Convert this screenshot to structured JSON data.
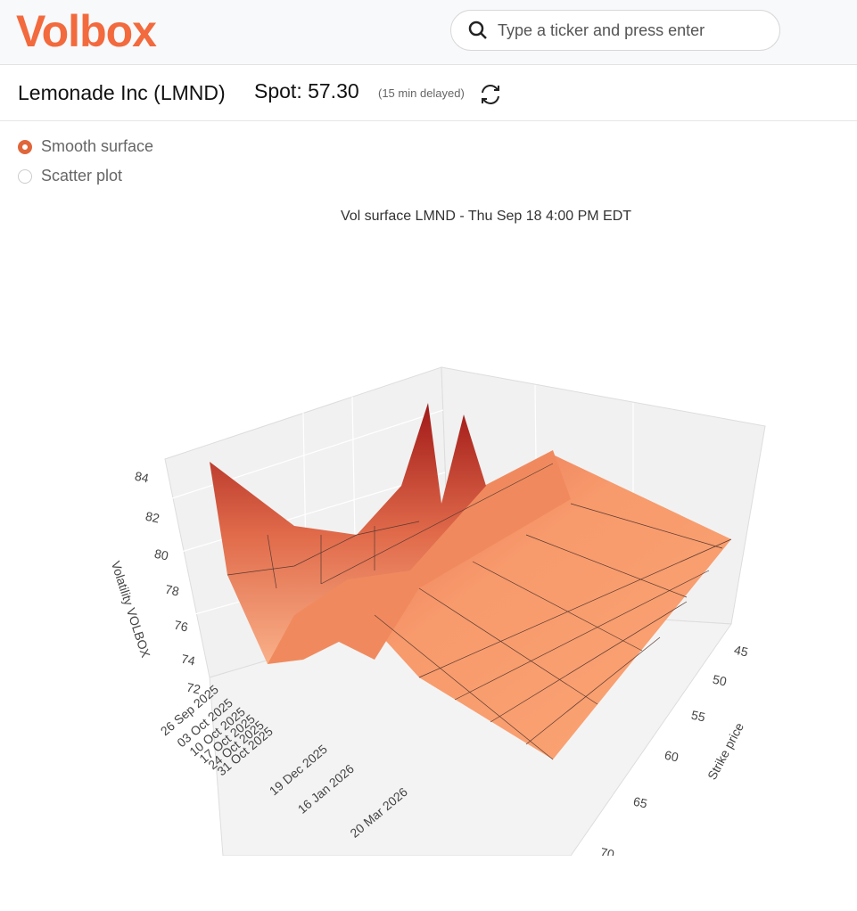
{
  "header": {
    "logo": "Volbox",
    "search_placeholder": "Type a ticker and press enter"
  },
  "ticker": {
    "name": "Lemonade Inc (LMND)",
    "spot": "Spot: 57.30",
    "delay": "(15 min delayed)"
  },
  "options": [
    {
      "label": "Smooth surface",
      "selected": true
    },
    {
      "label": "Scatter plot",
      "selected": false
    }
  ],
  "plot": {
    "title": "Vol surface LMND - Thu Sep 18  4:00 PM EDT",
    "z_axis": {
      "title": "Volatility  VOLBOX",
      "ticks": [
        "84",
        "82",
        "80",
        "78",
        "76",
        "74",
        "72"
      ]
    },
    "x_axis": {
      "ticks": [
        "26 Sep 2025",
        "03 Oct 2025",
        "10 Oct 2025",
        "17 Oct 2025",
        "24 Oct 2025",
        "31 Oct 2025",
        "19 Dec 2025",
        "16 Jan 2026",
        "20 Mar 2026"
      ]
    },
    "y_axis": {
      "title": "Strike price",
      "ticks": [
        "45",
        "50",
        "55",
        "60",
        "65",
        "70"
      ]
    }
  }
}
